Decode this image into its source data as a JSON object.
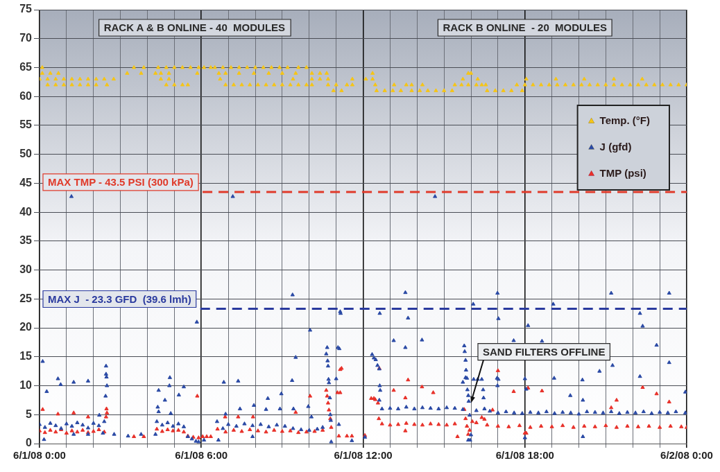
{
  "chart_data": {
    "type": "scatter",
    "marker": "triangle",
    "grid": true,
    "legend": "top right",
    "xlim": [
      "--06-01T00:00",
      "--06-02T00:00"
    ],
    "ylim": [
      0,
      75
    ],
    "xticks": [
      {
        "value": "--06-01T00:00",
        "label": "6/1/08 0:00"
      },
      {
        "value": "--06-01T01:00",
        "label": null
      },
      {
        "value": "--06-01T02:00",
        "label": null
      },
      {
        "value": "--06-01T03:00",
        "label": null
      },
      {
        "value": "--06-01T04:00",
        "label": null
      },
      {
        "value": "--06-01T05:00",
        "label": null
      },
      {
        "value": "--06-01T06:00",
        "label": "6/1/08 6:00"
      },
      {
        "value": "--06-01T07:00",
        "label": null
      },
      {
        "value": "--06-01T08:00",
        "label": null
      },
      {
        "value": "--06-01T09:00",
        "label": null
      },
      {
        "value": "--06-01T10:00",
        "label": null
      },
      {
        "value": "--06-01T11:00",
        "label": null
      },
      {
        "value": "--06-01T12:00",
        "label": "6/1/08 12:00"
      },
      {
        "value": "--06-01T13:00",
        "label": null
      },
      {
        "value": "--06-01T14:00",
        "label": null
      },
      {
        "value": "--06-01T15:00",
        "label": null
      },
      {
        "value": "--06-01T16:00",
        "label": null
      },
      {
        "value": "--06-01T17:00",
        "label": null
      },
      {
        "value": "--06-01T18:00",
        "label": "6/1/08 18:00"
      },
      {
        "value": "--06-01T19:00",
        "label": null
      },
      {
        "value": "--06-01T20:00",
        "label": null
      },
      {
        "value": "--06-01T21:00",
        "label": null
      },
      {
        "value": "--06-01T22:00",
        "label": null
      },
      {
        "value": "--06-01T23:00",
        "label": null
      },
      {
        "value": "--06-02T00:00",
        "label": "6/2/08 0:00"
      }
    ],
    "yticks": [
      0,
      5,
      10,
      15,
      20,
      25,
      30,
      35,
      40,
      45,
      50,
      55,
      60,
      65,
      70,
      75
    ],
    "ref_lines": [
      {
        "axis": "y",
        "value": 43.5,
        "label": "MAX TMP - 43.5 PSI (300 kPa)",
        "color": "#e03a2a",
        "line_style": "dashed"
      },
      {
        "axis": "y",
        "value": 23.3,
        "label": "MAX J  - 23.3 GFD  (39.6 lmh)",
        "color": "#2a3a9e",
        "line_style": "dashed"
      }
    ],
    "annotations": [
      "RACK A & B ONLINE - 40  MODULES",
      "RACK B ONLINE  - 20  MODULES",
      {
        "text": "SAND FILTERS OFFLINE",
        "x": "--06-01T16:00",
        "y": 7
      }
    ],
    "series": [
      {
        "name": "Temp. (°F)",
        "color": "#f5c518",
        "x": [
          "--06-01T00:06",
          "--06-01T00:06",
          "--06-01T00:24",
          "--06-01T00:42",
          "--06-01T00:00",
          "--06-01T00:18",
          "--06-01T00:36",
          "--06-01T00:54",
          "--06-01T01:12",
          "--06-01T01:30",
          "--06-01T01:48",
          "--06-01T02:06",
          "--06-01T02:24",
          "--06-01T00:18",
          "--06-01T00:36",
          "--06-01T00:54",
          "--06-01T01:12",
          "--06-01T01:30",
          "--06-01T01:48",
          "--06-01T02:06",
          "--06-01T02:30",
          "--06-01T02:45",
          "--06-01T03:15",
          "--06-01T03:30",
          "--06-01T03:46",
          "--06-01T03:52",
          "--06-01T04:24",
          "--06-01T04:42",
          "--06-01T05:00",
          "--06-01T05:18",
          "--06-01T05:36",
          "--06-01T05:54",
          "--06-01T04:18",
          "--06-01T04:30",
          "--06-01T04:48",
          "--06-01T05:51",
          "--06-01T04:30",
          "--06-01T04:48",
          "--06-01T04:42",
          "--06-01T05:00",
          "--06-01T05:18",
          "--06-01T05:30",
          "--06-01T06:06",
          "--06-01T06:21",
          "--06-01T06:30",
          "--06-01T06:48",
          "--06-01T07:06",
          "--06-01T07:24",
          "--06-01T07:42",
          "--06-01T08:00",
          "--06-01T08:18",
          "--06-01T08:36",
          "--06-01T08:54",
          "--06-01T09:12",
          "--06-01T09:36",
          "--06-01T09:54",
          "--06-01T06:39",
          "--06-01T06:54",
          "--06-01T07:24",
          "--06-01T07:57",
          "--06-01T08:30",
          "--06-01T09:00",
          "--06-01T09:30",
          "--06-01T10:06",
          "--06-01T10:24",
          "--06-01T10:39",
          "--06-01T06:42",
          "--06-01T09:24",
          "--06-01T10:06",
          "--06-01T10:24",
          "--06-01T10:42",
          "--06-01T06:54",
          "--06-01T07:12",
          "--06-01T07:30",
          "--06-01T07:48",
          "--06-01T08:06",
          "--06-01T08:24",
          "--06-01T08:42",
          "--06-01T09:00",
          "--06-01T09:18",
          "--06-01T09:36",
          "--06-01T09:54",
          "--06-01T10:06",
          "--06-01T10:42",
          "--06-01T11:00",
          "--06-01T11:24",
          "--06-01T11:36",
          "--06-01T10:54",
          "--06-01T11:12",
          "--06-01T11:36",
          "--06-01T12:06",
          "--06-01T12:21",
          "--06-01T12:21",
          "--06-01T12:27",
          "--06-01T13:09",
          "--06-01T13:36",
          "--06-01T13:48",
          "--06-01T14:12",
          "--06-01T12:30",
          "--06-01T12:48",
          "--06-01T13:06",
          "--06-01T13:24",
          "--06-01T13:48",
          "--06-01T14:06",
          "--06-01T14:24",
          "--06-01T14:42",
          "--06-01T15:00",
          "--06-01T15:18",
          "--06-01T15:24",
          "--06-01T15:39",
          "--06-01T15:54",
          "--06-01T16:12",
          "--06-01T16:24",
          "--06-01T16:33",
          "--06-01T15:42",
          "--06-01T16:15",
          "--06-01T15:54",
          "--06-01T16:00",
          "--06-01T16:36",
          "--06-01T16:54",
          "--06-01T17:12",
          "--06-01T17:30",
          "--06-01T17:54",
          "--06-01T17:42",
          "--06-01T18:00",
          "--06-01T18:18",
          "--06-01T18:36",
          "--06-01T18:54",
          "--06-01T19:12",
          "--06-01T19:30",
          "--06-01T19:48",
          "--06-01T20:06",
          "--06-01T20:24",
          "--06-01T20:42",
          "--06-01T21:00",
          "--06-01T21:18",
          "--06-01T21:36",
          "--06-01T21:54",
          "--06-01T22:12",
          "--06-01T22:30",
          "--06-01T22:48",
          "--06-01T23:06",
          "--06-01T23:24",
          "--06-01T23:42",
          "--06-02T00:00",
          "--06-01T18:03",
          "--06-01T19:09",
          "--06-01T20:12",
          "--06-01T21:18",
          "--06-01T22:21"
        ],
        "values": [
          65,
          64,
          64,
          64,
          63,
          63,
          63,
          63,
          63,
          63,
          63,
          63,
          63,
          62,
          62,
          62,
          62,
          62,
          62,
          62,
          62,
          63,
          64,
          65,
          64,
          65,
          65,
          65,
          65,
          65,
          65,
          65,
          64,
          64,
          64,
          64,
          63,
          63,
          62,
          62,
          62,
          62,
          65,
          65,
          65,
          65,
          65,
          65,
          65,
          65,
          65,
          65,
          65,
          65,
          65,
          65,
          64,
          64,
          64,
          64,
          64,
          64,
          64,
          64,
          64,
          64,
          63,
          63,
          63,
          63,
          63,
          62,
          62,
          62,
          62,
          62,
          62,
          62,
          62,
          62,
          62,
          62,
          62,
          62,
          62,
          62,
          62,
          61,
          61,
          63,
          63,
          63,
          64,
          62,
          62,
          62,
          62,
          62,
          61,
          61,
          61,
          61,
          61,
          61,
          61,
          61,
          61,
          61,
          62,
          62,
          62,
          62,
          62,
          62,
          63,
          63,
          64,
          64,
          61,
          61,
          61,
          61,
          61,
          62,
          62,
          62,
          62,
          62,
          62,
          62,
          62,
          62,
          62,
          62,
          62,
          62,
          62,
          62,
          62,
          62,
          62,
          62,
          62,
          62,
          62,
          63,
          63,
          63,
          63,
          63
        ]
      },
      {
        "name": "J (gfd)",
        "color": "#2b4aa5",
        "x": [
          "--06-01T00:00",
          "--06-01T00:12",
          "--06-01T00:24",
          "--06-01T00:36",
          "--06-01T00:48",
          "--06-01T01:00",
          "--06-01T01:12",
          "--06-01T01:24",
          "--06-01T01:36",
          "--06-01T01:48",
          "--06-01T02:00",
          "--06-01T02:12",
          "--06-01T02:24",
          "--06-01T00:07",
          "--06-01T00:16",
          "--06-01T00:10",
          "--06-01T00:41",
          "--06-01T00:47",
          "--06-01T01:16",
          "--06-01T01:48",
          "--06-01T01:16",
          "--06-01T01:48",
          "--06-01T02:21",
          "--06-01T02:13",
          "--06-01T02:28",
          "--06-01T02:28",
          "--06-01T02:29",
          "--06-01T02:30",
          "--06-01T02:27",
          "--06-01T01:11",
          "--06-01T02:46",
          "--06-01T03:17",
          "--06-01T03:46",
          "--06-01T04:18",
          "--06-01T04:21",
          "--06-01T04:33",
          "--06-01T04:45",
          "--06-01T04:57",
          "--06-01T05:09",
          "--06-01T05:21",
          "--06-01T05:30",
          "--06-01T05:39",
          "--06-01T05:48",
          "--06-01T05:54",
          "--06-01T04:25",
          "--06-01T04:23",
          "--06-01T04:25",
          "--06-01T04:39",
          "--06-01T04:50",
          "--06-01T04:49",
          "--06-01T04:52",
          "--06-01T05:10",
          "--06-01T05:21",
          "--06-01T05:50",
          "--06-01T06:06",
          "--06-01T06:38",
          "--06-01T06:35",
          "--06-01T06:48",
          "--06-01T07:00",
          "--06-01T07:18",
          "--06-01T07:36",
          "--06-01T07:54",
          "--06-01T08:12",
          "--06-01T08:30",
          "--06-01T08:48",
          "--06-01T09:06",
          "--06-01T09:24",
          "--06-01T09:42",
          "--06-01T10:00",
          "--06-01T10:18",
          "--06-01T10:30",
          "--06-01T06:50",
          "--06-01T06:54",
          "--06-01T07:10",
          "--06-01T07:22",
          "--06-01T07:26",
          "--06-01T07:54",
          "--06-01T07:57",
          "--06-01T08:28",
          "--06-01T08:24",
          "--06-01T08:58",
          "--06-01T08:55",
          "--06-01T09:22",
          "--06-01T09:23",
          "--06-01T09:25",
          "--06-01T09:30",
          "--06-01T10:02",
          "--06-01T09:58",
          "--06-01T10:05",
          "--06-01T10:38",
          "--06-01T10:40",
          "--06-01T10:41",
          "--06-01T10:42",
          "--06-01T10:43",
          "--06-01T10:44",
          "--06-01T10:46",
          "--06-01T10:47",
          "--06-01T10:48",
          "--06-01T10:49",
          "--06-01T11:00",
          "--06-01T11:04",
          "--06-01T11:07",
          "--06-01T11:09",
          "--06-01T11:10",
          "--06-01T11:06",
          "--06-01T11:35",
          "--06-01T12:04",
          "--06-01T12:20",
          "--06-01T12:24",
          "--06-01T12:28",
          "--06-01T12:32",
          "--06-01T12:36",
          "--06-01T12:37",
          "--06-01T12:38",
          "--06-01T12:36",
          "--06-01T12:37",
          "--06-01T13:34",
          "--06-01T13:40",
          "--06-01T13:08",
          "--06-01T13:34",
          "--06-01T14:11",
          "--06-01T14:40",
          "--06-01T12:42",
          "--06-01T13:00",
          "--06-01T13:18",
          "--06-01T13:36",
          "--06-01T13:54",
          "--06-01T14:12",
          "--06-01T14:30",
          "--06-01T14:48",
          "--06-01T15:06",
          "--06-01T15:24",
          "--06-01T15:42",
          "--06-01T15:45",
          "--06-01T15:46",
          "--06-01T15:48",
          "--06-01T15:49",
          "--06-01T15:51",
          "--06-01T15:52",
          "--06-01T15:54",
          "--06-01T15:55",
          "--06-01T15:57",
          "--06-01T15:58",
          "--06-01T15:54",
          "--06-01T16:00",
          "--06-01T16:05",
          "--06-01T15:48",
          "--06-01T15:42",
          "--06-01T16:06",
          "--06-01T16:15",
          "--06-01T16:24",
          "--06-01T16:27",
          "--06-01T16:28",
          "--06-01T16:12",
          "--06-01T16:30",
          "--06-01T16:42",
          "--06-01T17:00",
          "--06-01T17:18",
          "--06-01T17:36",
          "--06-01T17:54",
          "--06-01T18:12",
          "--06-01T18:30",
          "--06-01T18:48",
          "--06-01T19:06",
          "--06-01T19:24",
          "--06-01T19:42",
          "--06-01T20:00",
          "--06-01T20:18",
          "--06-01T20:36",
          "--06-01T20:54",
          "--06-01T21:12",
          "--06-01T21:30",
          "--06-01T21:48",
          "--06-01T22:06",
          "--06-01T22:24",
          "--06-01T22:42",
          "--06-01T23:00",
          "--06-01T23:18",
          "--06-01T23:36",
          "--06-01T23:57",
          "--06-01T16:59",
          "--06-01T17:01",
          "--06-01T16:58",
          "--06-01T16:59",
          "--06-01T17:01",
          "--06-01T17:35",
          "--06-01T18:00",
          "--06-01T18:00",
          "--06-01T18:03",
          "--06-01T18:07",
          "--06-01T18:38",
          "--06-01T19:03",
          "--06-01T19:05",
          "--06-01T19:41",
          "--06-01T20:08",
          "--06-01T20:09",
          "--06-01T20:09",
          "--06-01T20:46",
          "--06-01T21:12",
          "--06-01T21:15",
          "--06-01T22:16",
          "--06-01T22:22",
          "--06-01T22:16",
          "--06-01T22:53",
          "--06-01T23:21",
          "--06-01T23:21",
          "--06-01T23:57"
        ],
        "values": [
          3.3,
          2.8,
          3.5,
          3.1,
          2.6,
          3.4,
          3.0,
          3.6,
          3.2,
          2.7,
          3.5,
          3.1,
          3.8,
          14.2,
          9,
          0.7,
          11.2,
          10.2,
          10.6,
          10.8,
          1.6,
          1.6,
          1.8,
          4.9,
          13.4,
          12,
          11.5,
          10,
          8.2,
          42.7,
          1.6,
          1.3,
          1.6,
          1.6,
          3.8,
          3.2,
          3.6,
          3.0,
          3.4,
          2.9,
          1.2,
          0.8,
          0.4,
          0.3,
          9.2,
          6.3,
          5.5,
          7.5,
          11.4,
          10,
          5.2,
          8.4,
          9.8,
          21,
          0.6,
          0.6,
          3.8,
          2.6,
          3.3,
          3.0,
          3.4,
          3.1,
          3.3,
          2.9,
          3.2,
          3.0,
          2.6,
          2.4,
          2.3,
          2.5,
          2.8,
          10.6,
          5.1,
          42.7,
          10.8,
          6,
          1.2,
          6.6,
          7.8,
          5.9,
          8.6,
          6,
          10.9,
          25.7,
          6,
          14.9,
          19.6,
          6.4,
          4.6,
          15.5,
          16.6,
          14.3,
          13.4,
          11.1,
          10.5,
          7.9,
          5,
          4,
          0.3,
          11.2,
          16.6,
          16.4,
          22.8,
          22.5,
          3.3,
          0.5,
          1.1,
          15.4,
          14.8,
          14.5,
          13.5,
          12.9,
          10,
          9.2,
          7.5,
          22.5,
          26.1,
          21.7,
          17.8,
          16.6,
          17.9,
          42.7,
          6.0,
          6.1,
          6.0,
          6.3,
          6.0,
          6.2,
          6.1,
          6.0,
          6.2,
          6.1,
          5.9,
          16.9,
          15.9,
          14.4,
          12.7,
          11.3,
          9.3,
          8.3,
          7.3,
          4.9,
          0.6,
          0.6,
          1.5,
          24.1,
          11.4,
          10.6,
          11.1,
          11.1,
          11.1,
          9.3,
          7.9,
          5.7,
          6.0,
          5.6,
          5.3,
          5.5,
          5.3,
          5.2,
          5.4,
          5.3,
          5.5,
          5.2,
          5.4,
          5.3,
          5.1,
          5.5,
          5.4,
          5.3,
          5.5,
          5.2,
          5.4,
          5.3,
          5.5,
          5.2,
          5.4,
          5.3,
          5.5,
          5.3,
          26,
          21.6,
          11.3,
          10,
          11.1,
          17.8,
          1,
          11.2,
          9.4,
          20.4,
          17.7,
          24.1,
          11.3,
          8.3,
          11,
          7.5,
          1.2,
          12.5,
          26,
          13.5,
          22.5,
          20.3,
          11.6,
          17,
          26,
          14,
          8.9
        ]
      },
      {
        "name": "TMP (psi)",
        "color": "#e8312a",
        "x": [
          "--06-01T00:00",
          "--06-01T00:12",
          "--06-01T00:24",
          "--06-01T00:36",
          "--06-01T00:48",
          "--06-01T01:00",
          "--06-01T01:12",
          "--06-01T01:24",
          "--06-01T01:36",
          "--06-01T01:48",
          "--06-01T02:00",
          "--06-01T02:12",
          "--06-01T02:24",
          "--06-01T00:07",
          "--06-01T00:41",
          "--06-01T01:16",
          "--06-01T01:48",
          "--06-01T02:29",
          "--06-01T02:30",
          "--06-01T02:28",
          "--06-01T03:30",
          "--06-01T03:52",
          "--06-01T04:21",
          "--06-01T04:33",
          "--06-01T04:45",
          "--06-01T04:57",
          "--06-01T05:09",
          "--06-01T05:21",
          "--06-01T05:30",
          "--06-01T05:42",
          "--06-01T05:51",
          "--06-01T05:54",
          "--06-01T06:03",
          "--06-01T06:12",
          "--06-01T06:21",
          "--06-01T06:36",
          "--06-01T06:54",
          "--06-01T07:12",
          "--06-01T07:30",
          "--06-01T07:48",
          "--06-01T08:06",
          "--06-01T08:24",
          "--06-01T08:42",
          "--06-01T09:00",
          "--06-01T09:18",
          "--06-01T09:36",
          "--06-01T09:54",
          "--06-01T10:12",
          "--06-01T10:30",
          "--06-01T06:53",
          "--06-01T07:22",
          "--06-01T07:55",
          "--06-01T10:02",
          "--06-01T09:30",
          "--06-01T10:38",
          "--06-01T10:40",
          "--06-01T10:42",
          "--06-01T10:44",
          "--06-01T10:47",
          "--06-01T10:49",
          "--06-01T11:09",
          "--06-01T11:12",
          "--06-01T11:03",
          "--06-01T11:09",
          "--06-01T11:06",
          "--06-01T11:24",
          "--06-01T11:35",
          "--06-01T12:04",
          "--06-01T12:18",
          "--06-01T12:24",
          "--06-01T12:27",
          "--06-01T12:33",
          "--06-01T12:36",
          "--06-01T12:35",
          "--06-01T12:42",
          "--06-01T13:00",
          "--06-01T13:18",
          "--06-01T13:36",
          "--06-01T13:54",
          "--06-01T14:12",
          "--06-01T14:30",
          "--06-01T14:48",
          "--06-01T15:06",
          "--06-01T15:24",
          "--06-01T13:40",
          "--06-01T14:11",
          "--06-01T13:08",
          "--06-01T13:34",
          "--06-01T13:34",
          "--06-01T14:36",
          "--06-01T15:30",
          "--06-01T15:45",
          "--06-01T15:48",
          "--06-01T15:51",
          "--06-01T15:54",
          "--06-01T15:57",
          "--06-01T16:03",
          "--06-01T16:24",
          "--06-01T16:30",
          "--06-01T16:48",
          "--06-01T17:00",
          "--06-01T17:35",
          "--06-01T18:00",
          "--06-01T18:03",
          "--06-01T18:07",
          "--06-01T18:38",
          "--06-01T21:24",
          "--06-01T22:22",
          "--06-01T22:53",
          "--06-01T23:21",
          "--06-01T21:12",
          "--06-01T16:12",
          "--06-01T16:36",
          "--06-01T17:00",
          "--06-01T17:24",
          "--06-01T17:48",
          "--06-01T18:12",
          "--06-01T18:36",
          "--06-01T19:00",
          "--06-01T19:24",
          "--06-01T19:48",
          "--06-01T20:12",
          "--06-01T20:36",
          "--06-01T21:00",
          "--06-01T21:24",
          "--06-01T21:48",
          "--06-01T22:12",
          "--06-01T22:36",
          "--06-01T23:00",
          "--06-01T23:24",
          "--06-01T23:48",
          "--06-02T00:00"
        ],
        "values": [
          2.2,
          1.9,
          2.3,
          2.0,
          2.4,
          1.8,
          2.2,
          2.0,
          2.3,
          1.9,
          2.1,
          2.4,
          2.0,
          5.9,
          5.1,
          5.3,
          4.6,
          6,
          5.3,
          4.6,
          1.2,
          1.2,
          2.5,
          2.1,
          2.4,
          2.2,
          2.3,
          2.0,
          1.3,
          1.1,
          8.2,
          1.0,
          1.2,
          1.2,
          1.2,
          2.5,
          2.0,
          2.3,
          2.1,
          2.4,
          2.2,
          2.0,
          2.3,
          2.1,
          2.2,
          1.9,
          2.0,
          2.1,
          2.3,
          4.6,
          4.6,
          4.6,
          8.2,
          5.4,
          9.2,
          8.2,
          7,
          5.8,
          4.3,
          2.8,
          12.8,
          13,
          8.8,
          8.8,
          1.3,
          1.3,
          1.3,
          1.4,
          7.8,
          7.8,
          7.6,
          7,
          13.0,
          4.3,
          3.4,
          3.2,
          3.3,
          3.5,
          3.3,
          3.2,
          3.4,
          3.3,
          3.2,
          3.4,
          11,
          9.8,
          9.2,
          7.9,
          2.2,
          8.8,
          1.2,
          5.9,
          4.3,
          3,
          1.6,
          2.3,
          3.8,
          4.5,
          4.2,
          5.8,
          12.6,
          9,
          1.8,
          1.8,
          9.6,
          9.1,
          7.5,
          9.7,
          8.6,
          7.2,
          6.2,
          3.6,
          3.2,
          3.0,
          2.9,
          3.1,
          2.8,
          3.0,
          2.9,
          3.1,
          2.8,
          3.0,
          2.9,
          3.1,
          2.8,
          3.0,
          2.9,
          3.0,
          2.8,
          3.0,
          2.9,
          2.8
        ]
      }
    ]
  }
}
